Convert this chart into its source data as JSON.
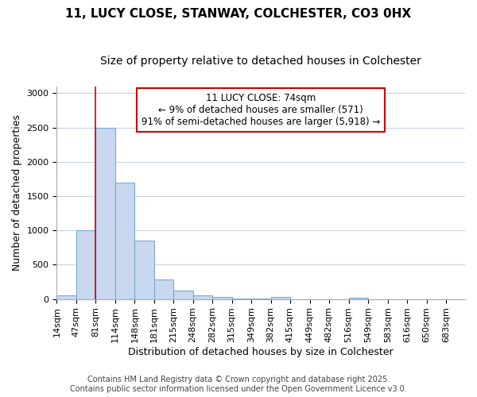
{
  "title": "11, LUCY CLOSE, STANWAY, COLCHESTER, CO3 0HX",
  "subtitle": "Size of property relative to detached houses in Colchester",
  "xlabel": "Distribution of detached houses by size in Colchester",
  "ylabel": "Number of detached properties",
  "bar_values": [
    50,
    1000,
    2500,
    1700,
    850,
    280,
    120,
    50,
    30,
    5,
    5,
    35,
    0,
    0,
    0,
    15,
    0,
    0,
    0,
    0,
    0
  ],
  "bin_edges": [
    14,
    47,
    81,
    114,
    148,
    181,
    215,
    248,
    282,
    315,
    349,
    382,
    415,
    449,
    482,
    516,
    549,
    583,
    616,
    650,
    683,
    716
  ],
  "x_tick_labels": [
    "14sqm",
    "47sqm",
    "81sqm",
    "114sqm",
    "148sqm",
    "181sqm",
    "215sqm",
    "248sqm",
    "282sqm",
    "315sqm",
    "349sqm",
    "382sqm",
    "415sqm",
    "449sqm",
    "482sqm",
    "516sqm",
    "549sqm",
    "583sqm",
    "616sqm",
    "650sqm",
    "683sqm"
  ],
  "bar_color": "#c8d8ef",
  "bar_edge_color": "#7aaad0",
  "property_line_x": 81,
  "annotation_title": "11 LUCY CLOSE: 74sqm",
  "annotation_line2": "← 9% of detached houses are smaller (571)",
  "annotation_line3": "91% of semi-detached houses are larger (5,918) →",
  "annotation_box_color": "#cc0000",
  "vline_color": "#cc0000",
  "ylim": [
    0,
    3100
  ],
  "grid_color": "#c8d4e8",
  "bg_color": "#ffffff",
  "footer_line1": "Contains HM Land Registry data © Crown copyright and database right 2025.",
  "footer_line2": "Contains public sector information licensed under the Open Government Licence v3.0.",
  "title_fontsize": 11,
  "subtitle_fontsize": 10,
  "tick_fontsize": 8,
  "ylabel_fontsize": 9,
  "xlabel_fontsize": 9,
  "footer_fontsize": 7,
  "annotation_fontsize": 8.5
}
